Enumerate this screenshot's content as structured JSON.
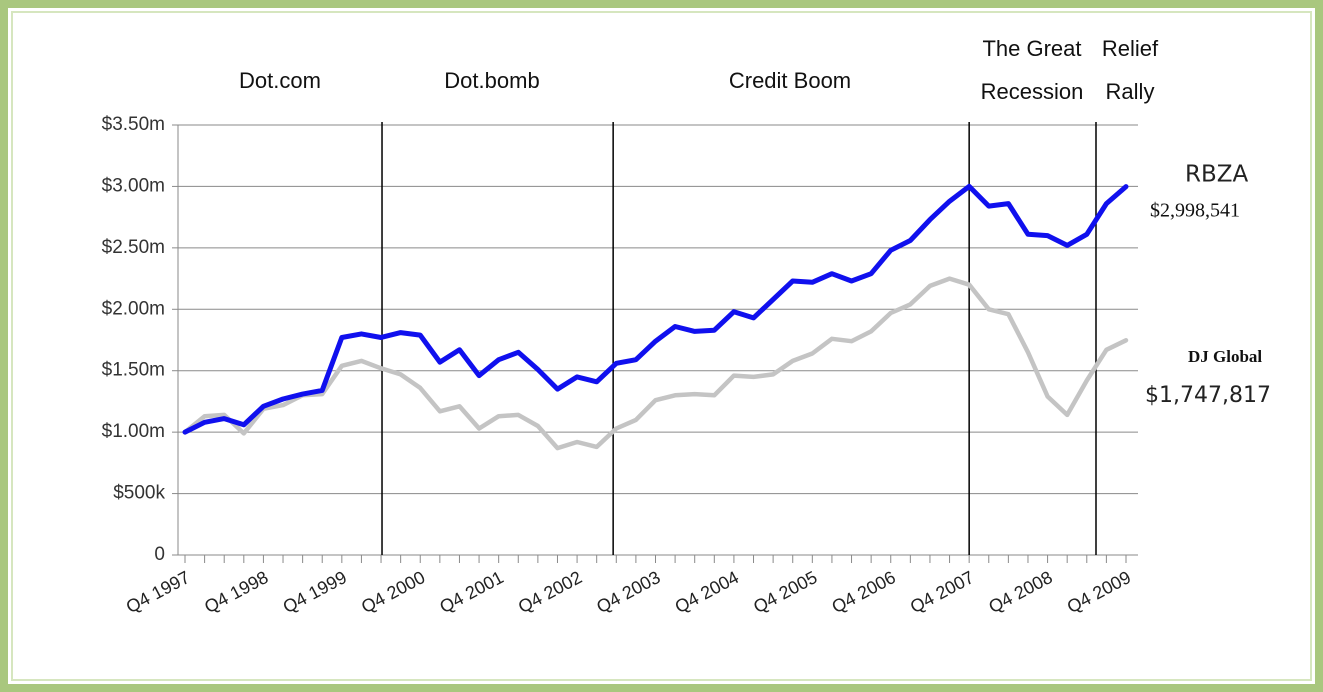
{
  "chart_data": {
    "type": "line",
    "categories": [
      "Q4 1997",
      null,
      null,
      null,
      "Q4 1998",
      null,
      null,
      null,
      "Q4 1999",
      null,
      null,
      null,
      "Q4 2000",
      null,
      null,
      null,
      "Q4 2001",
      null,
      null,
      null,
      "Q4 2002",
      null,
      null,
      null,
      "Q4 2003",
      null,
      null,
      null,
      "Q4 2004",
      null,
      null,
      null,
      "Q4 2005",
      null,
      null,
      null,
      "Q4 2006",
      null,
      null,
      null,
      "Q4 2007",
      null,
      null,
      null,
      "Q4 2008",
      null,
      null,
      null,
      "Q4 2009"
    ],
    "series": [
      {
        "name": "RBZA",
        "color": "#1010ee",
        "values": [
          1000000,
          1080000,
          1110000,
          1060000,
          1210000,
          1270000,
          1310000,
          1340000,
          1770000,
          1800000,
          1770000,
          1810000,
          1790000,
          1570000,
          1670000,
          1460000,
          1590000,
          1650000,
          1510000,
          1350000,
          1450000,
          1410000,
          1560000,
          1590000,
          1740000,
          1860000,
          1820000,
          1830000,
          1980000,
          1930000,
          2080000,
          2230000,
          2220000,
          2290000,
          2230000,
          2290000,
          2480000,
          2560000,
          2730000,
          2880000,
          3000000,
          2840000,
          2860000,
          2610000,
          2600000,
          2520000,
          2610000,
          2860000,
          2998541
        ],
        "value_labels": [
          null,
          null,
          null,
          null,
          null,
          null,
          null,
          null,
          null,
          null,
          null,
          null,
          null,
          null,
          null,
          null,
          null,
          null,
          null,
          null,
          null,
          null,
          null,
          null,
          null,
          null,
          null,
          null,
          null,
          null,
          null,
          null,
          null,
          null,
          null,
          null,
          null,
          null,
          null,
          null,
          null,
          null,
          null,
          null,
          null,
          null,
          null,
          null,
          "$2,998,541"
        ]
      },
      {
        "name": "DJ Global",
        "color": "#c4c4c4",
        "values": [
          1000000,
          1130000,
          1140000,
          990000,
          1190000,
          1220000,
          1300000,
          1310000,
          1540000,
          1580000,
          1520000,
          1470000,
          1360000,
          1170000,
          1210000,
          1030000,
          1130000,
          1140000,
          1050000,
          870000,
          920000,
          880000,
          1030000,
          1100000,
          1260000,
          1300000,
          1310000,
          1300000,
          1460000,
          1450000,
          1470000,
          1580000,
          1640000,
          1760000,
          1740000,
          1820000,
          1970000,
          2040000,
          2190000,
          2250000,
          2200000,
          2000000,
          1960000,
          1650000,
          1290000,
          1140000,
          1420000,
          1670000,
          1747817
        ],
        "value_labels": [
          null,
          null,
          null,
          null,
          null,
          null,
          null,
          null,
          null,
          null,
          null,
          null,
          null,
          null,
          null,
          null,
          null,
          null,
          null,
          null,
          null,
          null,
          null,
          null,
          null,
          null,
          null,
          null,
          null,
          null,
          null,
          null,
          null,
          null,
          null,
          null,
          null,
          null,
          null,
          null,
          null,
          null,
          null,
          null,
          null,
          null,
          null,
          null,
          "$1,747,817"
        ]
      }
    ],
    "ylim": [
      0,
      3500000
    ],
    "yticks": [
      0,
      {
        "value": 500000,
        "label": "$500k"
      },
      {
        "value": 1000000,
        "label": "$1.00m"
      },
      {
        "value": 1500000,
        "label": "$1.50m"
      },
      {
        "value": 2000000,
        "label": "$2.00m"
      },
      {
        "value": 2500000,
        "label": "$2.50m"
      },
      {
        "value": 3000000,
        "label": "$3.00m"
      },
      {
        "value": 3500000,
        "label": "$3.50m"
      }
    ],
    "grid": true,
    "annotations": [
      [
        "Dot.com"
      ],
      [
        "Dot.bomb"
      ],
      [
        "Credit Boom"
      ],
      [
        "The Great",
        "Recession"
      ],
      [
        "Relief",
        "Rally"
      ]
    ]
  }
}
